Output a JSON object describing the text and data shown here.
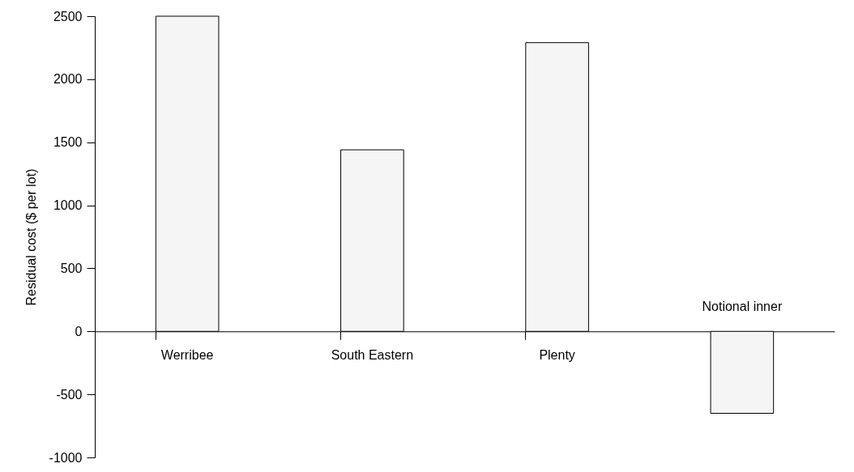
{
  "chart_data": {
    "type": "bar",
    "ylabel": "Residual cost ($ per lot)",
    "categories": [
      "Werribee",
      "South Eastern",
      "Plenty",
      "Notional inner"
    ],
    "values": [
      2500,
      1440,
      2290,
      -650
    ],
    "color": "#f5f5f5",
    "ylim": [
      -1000,
      2500
    ],
    "yticks": [
      -1000,
      -500,
      0,
      500,
      1000,
      1500,
      2000,
      2500
    ],
    "grid": false
  }
}
